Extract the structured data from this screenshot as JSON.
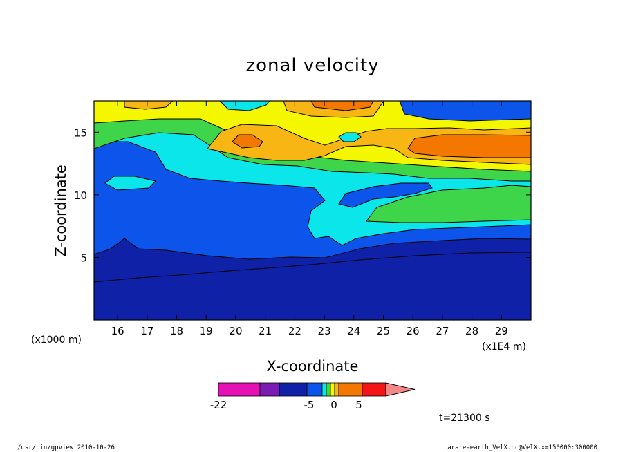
{
  "chart_data": {
    "type": "heatmap",
    "title": "zonal velocity",
    "xlabel": "X-coordinate",
    "ylabel": "Z-coordinate",
    "x_multiplier": "(x1E4 m)",
    "y_multiplier": "(x1000 m)",
    "xlim": [
      15.2,
      30
    ],
    "ylim": [
      0,
      17.5
    ],
    "x_ticks": [
      "16",
      "17",
      "18",
      "19",
      "20",
      "21",
      "22",
      "23",
      "24",
      "25",
      "26",
      "27",
      "28",
      "29"
    ],
    "y_ticks": [
      "5",
      "10",
      "15"
    ],
    "time_label": "t=21300 s",
    "colorbar": {
      "tick_labels": [
        "-22",
        "-5",
        "0",
        "5"
      ],
      "colors": [
        "#e412b4",
        "#7c1bb4",
        "#0f22a7",
        "#0c54ea",
        "#0ae6ea",
        "#3ed54a",
        "#f4f700",
        "#f8b614",
        "#f47800",
        "#f41616",
        "#f48888"
      ]
    }
  },
  "footer": {
    "left": "/usr/bin/gpview   2010-10-26",
    "right": "arare-earth_VelX.nc@VelX,x=150000:300000"
  }
}
